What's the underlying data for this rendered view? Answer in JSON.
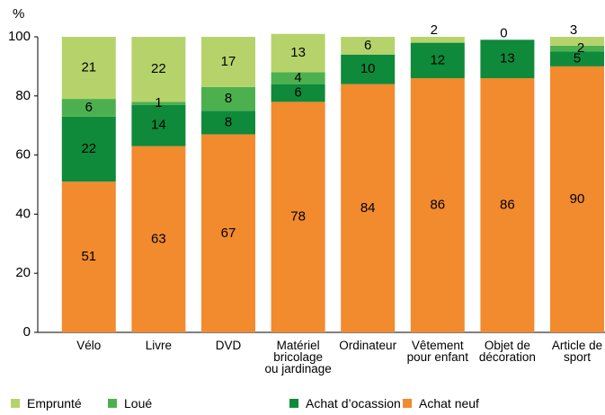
{
  "chart_data": {
    "type": "stacked_bar",
    "ylabel": "%",
    "categories": [
      "Vélo",
      "Livre",
      "DVD",
      "Matériel\nbricolage\nou jardinage",
      "Ordinateur",
      "Vêtement\npour enfant",
      "Objet de\ndécoration",
      "Article de\nsport"
    ],
    "series": [
      {
        "name": "Achat neuf",
        "color": "#f28a2e",
        "values": [
          51,
          63,
          67,
          78,
          84,
          86,
          86,
          90
        ]
      },
      {
        "name": "Achat d’ocassion",
        "color": "#0e8a3a",
        "values": [
          22,
          14,
          8,
          6,
          10,
          12,
          13,
          5
        ]
      },
      {
        "name": "Loué",
        "color": "#4db04f",
        "values": [
          6,
          1,
          8,
          4,
          null,
          null,
          null,
          2
        ]
      },
      {
        "name": "Emprunté",
        "color": "#b6d36b",
        "values": [
          21,
          22,
          17,
          13,
          6,
          2,
          0,
          3
        ]
      }
    ],
    "legend_order": [
      3,
      2,
      1,
      0
    ],
    "ylim": [
      0,
      100
    ],
    "yticks": [
      0,
      20,
      40,
      60,
      80,
      100
    ],
    "grid": false
  }
}
